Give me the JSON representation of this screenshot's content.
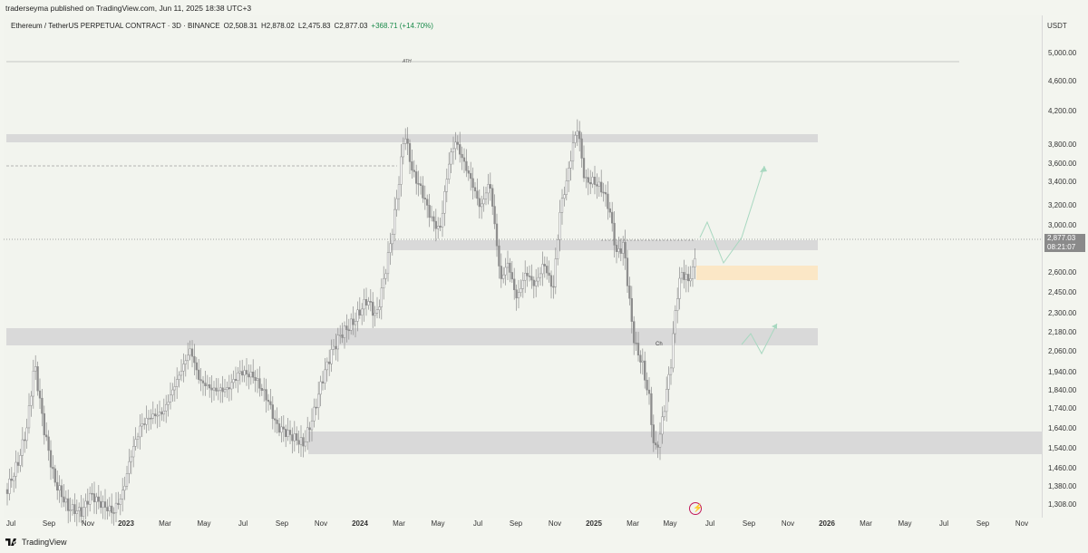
{
  "publisher": "traderseyma published on TradingView.com, Jun 11, 2025 18:38 UTC+3",
  "symbol": {
    "name": "Ethereum / TetherUS PERPETUAL CONTRACT · 3D · BINANCE",
    "open": "O2,508.31",
    "high": "H2,878.02",
    "low": "L2,475.83",
    "close": "C2,877.03",
    "change": "+368.71 (+14.70%)"
  },
  "currency": "USDT",
  "price_ticks": [
    "5,000.00",
    "4,600.00",
    "4,200.00",
    "3,800.00",
    "3,600.00",
    "3,400.00",
    "3,200.00",
    "3,000.00",
    "2,600.00",
    "2,450.00",
    "2,300.00",
    "2,180.00",
    "2,060.00",
    "1,940.00",
    "1,840.00",
    "1,740.00",
    "1,640.00",
    "1,540.00",
    "1,460.00",
    "1,380.00",
    "1,308.00"
  ],
  "last_price": "2,877.03",
  "countdown": "08:21:07",
  "time_ticks": [
    "Jul",
    "Sep",
    "Nov",
    "2023",
    "Mar",
    "May",
    "Jul",
    "Sep",
    "Nov",
    "2024",
    "Mar",
    "May",
    "Jul",
    "Sep",
    "Nov",
    "2025",
    "Mar",
    "May",
    "Jul",
    "Sep",
    "Nov",
    "2026",
    "Mar",
    "May",
    "Jul",
    "Sep",
    "Nov"
  ],
  "time_ticks_year": [
    false,
    false,
    false,
    true,
    false,
    false,
    false,
    false,
    false,
    true,
    false,
    false,
    false,
    false,
    false,
    true,
    false,
    false,
    false,
    false,
    false,
    true,
    false,
    false,
    false,
    false,
    false
  ],
  "annotations": {
    "ath": "ATH",
    "ch": "Ch"
  },
  "footer": "TradingView",
  "icons": {
    "logo": "tradingview-logo-icon",
    "alert": "lightning-icon"
  },
  "colors": {
    "zone": "#d9d9d9",
    "supply_zone": "#fbe7c6",
    "projection": "#a8d8c0",
    "candle": "#8c8c8c",
    "badge": "#8a8a8a"
  }
}
